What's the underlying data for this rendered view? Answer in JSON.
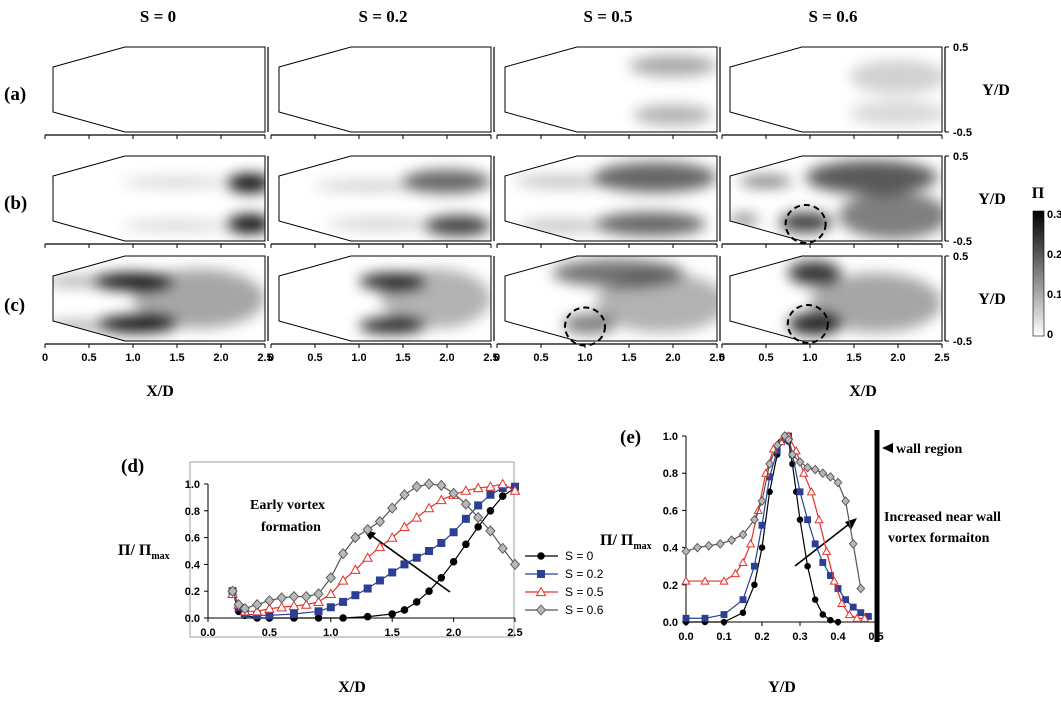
{
  "columns": [
    "S = 0",
    "S = 0.2",
    "S = 0.5",
    "S = 0.6"
  ],
  "rows": [
    "(a)",
    "(b)",
    "(c)"
  ],
  "colorbar": {
    "label": "Π",
    "ticks": [
      "0.3",
      "0.2",
      "0.1",
      "0"
    ]
  },
  "colors": {
    "S0": "#000000",
    "S02": "#2b3f95",
    "S05": "#e8302a",
    "S06": "#909090"
  },
  "chart_data": [
    {
      "type": "heatmap",
      "panel": "(a)-(c)",
      "xlabel": "X/D",
      "ylabel": "Y/D",
      "xticks": [
        "0",
        "0.5",
        "1.0",
        "1.5",
        "2.0",
        "2.5"
      ],
      "yticks": [
        "0.5",
        "-0.5"
      ],
      "xlim": [
        0,
        2.5
      ],
      "ylim": [
        -0.5,
        0.5
      ],
      "zlim": [
        0,
        0.3
      ],
      "columns": [
        "S = 0",
        "S = 0.2",
        "S = 0.5",
        "S = 0.6"
      ],
      "rows": [
        "(a)",
        "(b)",
        "(c)"
      ],
      "note": "grayscale intensity of Π; dashed circles mark near-wall vortex regions at X/D≈1.0"
    },
    {
      "type": "line",
      "panel": "(d)",
      "xlabel": "X/D",
      "ylabel": "Π/ Π",
      "ylabel_sub": "max",
      "xlim": [
        0,
        2.5
      ],
      "ylim": [
        0,
        1.0
      ],
      "xticks": [
        "0.0",
        "0.5",
        "1.0",
        "1.5",
        "2.0",
        "2.5"
      ],
      "yticks": [
        "0.0",
        "0.2",
        "0.4",
        "0.6",
        "0.8",
        "1.0"
      ],
      "annotation": "Early vortex\nformation",
      "legend_position": "right",
      "series": [
        {
          "name": "S = 0",
          "marker": "circle",
          "x": [
            0.2,
            0.25,
            0.3,
            0.4,
            0.5,
            0.7,
            0.9,
            1.1,
            1.3,
            1.5,
            1.6,
            1.7,
            1.8,
            1.9,
            2.0,
            2.1,
            2.2,
            2.3,
            2.4,
            2.5
          ],
          "y": [
            0.2,
            0.05,
            0.02,
            0.0,
            0.0,
            0.0,
            0.0,
            0.0,
            0.01,
            0.03,
            0.06,
            0.12,
            0.2,
            0.3,
            0.42,
            0.55,
            0.68,
            0.8,
            0.91,
            0.97
          ]
        },
        {
          "name": "S = 0.2",
          "marker": "square",
          "x": [
            0.2,
            0.25,
            0.3,
            0.4,
            0.5,
            0.7,
            0.9,
            1.0,
            1.1,
            1.2,
            1.3,
            1.4,
            1.5,
            1.6,
            1.7,
            1.8,
            1.9,
            2.0,
            2.1,
            2.2,
            2.3,
            2.4,
            2.5
          ],
          "y": [
            0.2,
            0.08,
            0.03,
            0.02,
            0.02,
            0.03,
            0.05,
            0.08,
            0.12,
            0.17,
            0.22,
            0.28,
            0.34,
            0.4,
            0.45,
            0.5,
            0.56,
            0.64,
            0.74,
            0.84,
            0.92,
            0.97,
            0.98
          ]
        },
        {
          "name": "S = 0.5",
          "marker": "triangle",
          "x": [
            0.2,
            0.25,
            0.3,
            0.4,
            0.5,
            0.6,
            0.7,
            0.8,
            0.9,
            1.0,
            1.1,
            1.2,
            1.3,
            1.4,
            1.5,
            1.6,
            1.7,
            1.8,
            1.9,
            2.0,
            2.1,
            2.2,
            2.3,
            2.4,
            2.5
          ],
          "y": [
            0.18,
            0.1,
            0.05,
            0.05,
            0.07,
            0.08,
            0.09,
            0.1,
            0.12,
            0.18,
            0.28,
            0.36,
            0.45,
            0.53,
            0.6,
            0.68,
            0.75,
            0.82,
            0.88,
            0.92,
            0.95,
            0.97,
            0.98,
            1.0,
            0.95
          ]
        },
        {
          "name": "S = 0.6",
          "marker": "diamond",
          "x": [
            0.2,
            0.25,
            0.3,
            0.4,
            0.5,
            0.6,
            0.7,
            0.8,
            0.9,
            1.0,
            1.1,
            1.2,
            1.3,
            1.4,
            1.5,
            1.6,
            1.7,
            1.8,
            1.9,
            2.0,
            2.1,
            2.2,
            2.3,
            2.4,
            2.5
          ],
          "y": [
            0.2,
            0.1,
            0.07,
            0.1,
            0.13,
            0.15,
            0.16,
            0.16,
            0.18,
            0.3,
            0.48,
            0.6,
            0.66,
            0.72,
            0.82,
            0.92,
            0.98,
            1.0,
            0.99,
            0.93,
            0.85,
            0.75,
            0.65,
            0.52,
            0.4
          ]
        }
      ]
    },
    {
      "type": "line",
      "panel": "(e)",
      "xlabel": "Y/D",
      "ylabel": "Π/ Π",
      "ylabel_sub": "max",
      "xlim": [
        0,
        0.5
      ],
      "ylim": [
        0,
        1.0
      ],
      "xticks": [
        "0.0",
        "0.1",
        "0.2",
        "0.3",
        "0.4",
        "0.5"
      ],
      "yticks": [
        "0.0",
        "0.2",
        "0.4",
        "0.6",
        "0.8",
        "1.0"
      ],
      "annotations": [
        "wall region",
        "Increased near wall\nvortex formaiton"
      ],
      "series": [
        {
          "name": "S = 0",
          "marker": "circle",
          "x": [
            0.0,
            0.05,
            0.1,
            0.15,
            0.18,
            0.2,
            0.22,
            0.24,
            0.25,
            0.26,
            0.27,
            0.28,
            0.29,
            0.3,
            0.32,
            0.34,
            0.36,
            0.38,
            0.4
          ],
          "y": [
            0.0,
            0.0,
            0.0,
            0.05,
            0.2,
            0.4,
            0.7,
            0.9,
            0.97,
            1.0,
            0.97,
            0.85,
            0.7,
            0.55,
            0.3,
            0.12,
            0.04,
            0.01,
            0.0
          ]
        },
        {
          "name": "S = 0.2",
          "marker": "square",
          "x": [
            0.0,
            0.05,
            0.1,
            0.15,
            0.18,
            0.2,
            0.22,
            0.24,
            0.26,
            0.27,
            0.28,
            0.3,
            0.32,
            0.34,
            0.36,
            0.38,
            0.4,
            0.42,
            0.44,
            0.46,
            0.48
          ],
          "y": [
            0.02,
            0.02,
            0.04,
            0.12,
            0.3,
            0.52,
            0.78,
            0.92,
            0.98,
            1.0,
            0.9,
            0.7,
            0.55,
            0.42,
            0.32,
            0.25,
            0.18,
            0.12,
            0.08,
            0.05,
            0.03
          ]
        },
        {
          "name": "S = 0.5",
          "marker": "triangle",
          "x": [
            0.0,
            0.05,
            0.1,
            0.13,
            0.15,
            0.17,
            0.19,
            0.21,
            0.23,
            0.25,
            0.27,
            0.29,
            0.31,
            0.33,
            0.35,
            0.37,
            0.39,
            0.41,
            0.43,
            0.45,
            0.47
          ],
          "y": [
            0.22,
            0.22,
            0.22,
            0.26,
            0.32,
            0.42,
            0.6,
            0.8,
            0.93,
            0.97,
            1.0,
            0.92,
            0.8,
            0.7,
            0.55,
            0.38,
            0.22,
            0.1,
            0.04,
            0.02,
            0.02
          ]
        },
        {
          "name": "S = 0.6",
          "marker": "diamond",
          "x": [
            0.0,
            0.03,
            0.06,
            0.09,
            0.12,
            0.15,
            0.18,
            0.2,
            0.22,
            0.24,
            0.26,
            0.27,
            0.28,
            0.3,
            0.32,
            0.34,
            0.36,
            0.38,
            0.4,
            0.42,
            0.44,
            0.46
          ],
          "y": [
            0.38,
            0.4,
            0.41,
            0.42,
            0.44,
            0.47,
            0.55,
            0.65,
            0.85,
            0.95,
            1.0,
            0.98,
            0.9,
            0.86,
            0.83,
            0.82,
            0.8,
            0.78,
            0.75,
            0.65,
            0.42,
            0.18
          ]
        }
      ]
    }
  ]
}
